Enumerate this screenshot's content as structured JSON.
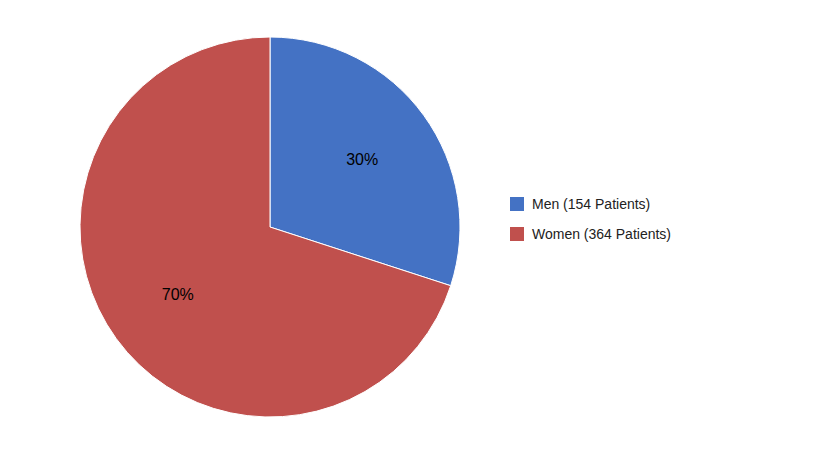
{
  "chart_data": {
    "type": "pie",
    "categories": [
      "Men (154 Patients)",
      "Women (364 Patients)"
    ],
    "values": [
      30,
      70
    ],
    "value_labels": [
      "30%",
      "70%"
    ],
    "colors": [
      "#4472C4",
      "#C0504D"
    ],
    "data_labels": true,
    "legend": "right"
  }
}
